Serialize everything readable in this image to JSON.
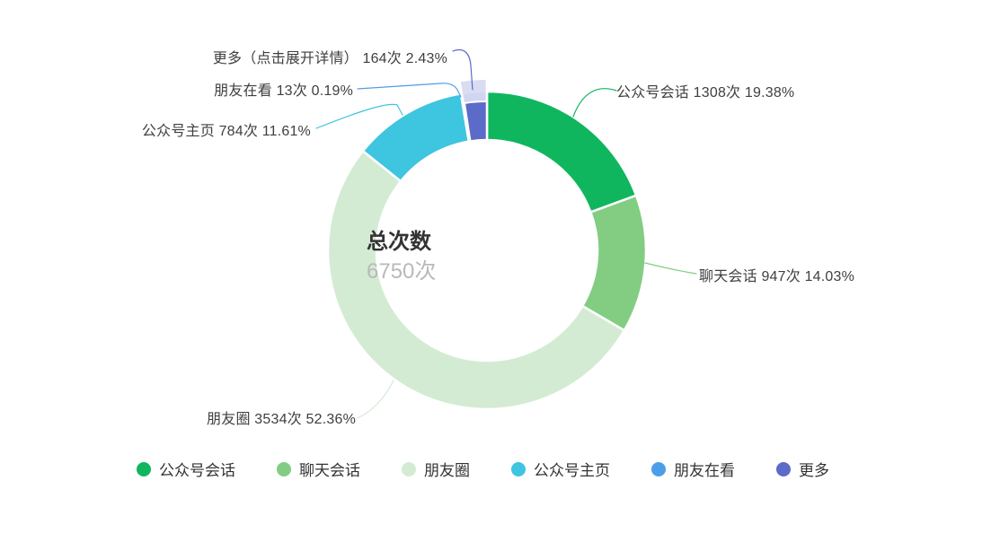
{
  "chart_data": {
    "type": "pie",
    "subtype": "donut",
    "title": "总次数",
    "center": {
      "title": "总次数",
      "value": "6750次"
    },
    "unit": "次",
    "total": 6750,
    "legend_position": "bottom",
    "grid": false,
    "series": [
      {
        "name": "公众号会话",
        "value": 1308,
        "percent": "19.38",
        "color": "#10B65E"
      },
      {
        "name": "聊天会话",
        "value": 947,
        "percent": "14.03",
        "color": "#82CD82"
      },
      {
        "name": "朋友圈",
        "value": 3534,
        "percent": "52.36",
        "color": "#D3EBD3"
      },
      {
        "name": "公众号主页",
        "value": 784,
        "percent": "11.61",
        "color": "#3EC5DF"
      },
      {
        "name": "朋友在看",
        "value": 13,
        "percent": "0.19",
        "color": "#4D9EE8"
      },
      {
        "name": "更多",
        "callout_name": "更多（点击展开详情）",
        "value": 164,
        "percent": "2.43",
        "color": "#5C6BC8",
        "highlighted": true,
        "highlight_color": "#D8DBF1"
      }
    ]
  }
}
